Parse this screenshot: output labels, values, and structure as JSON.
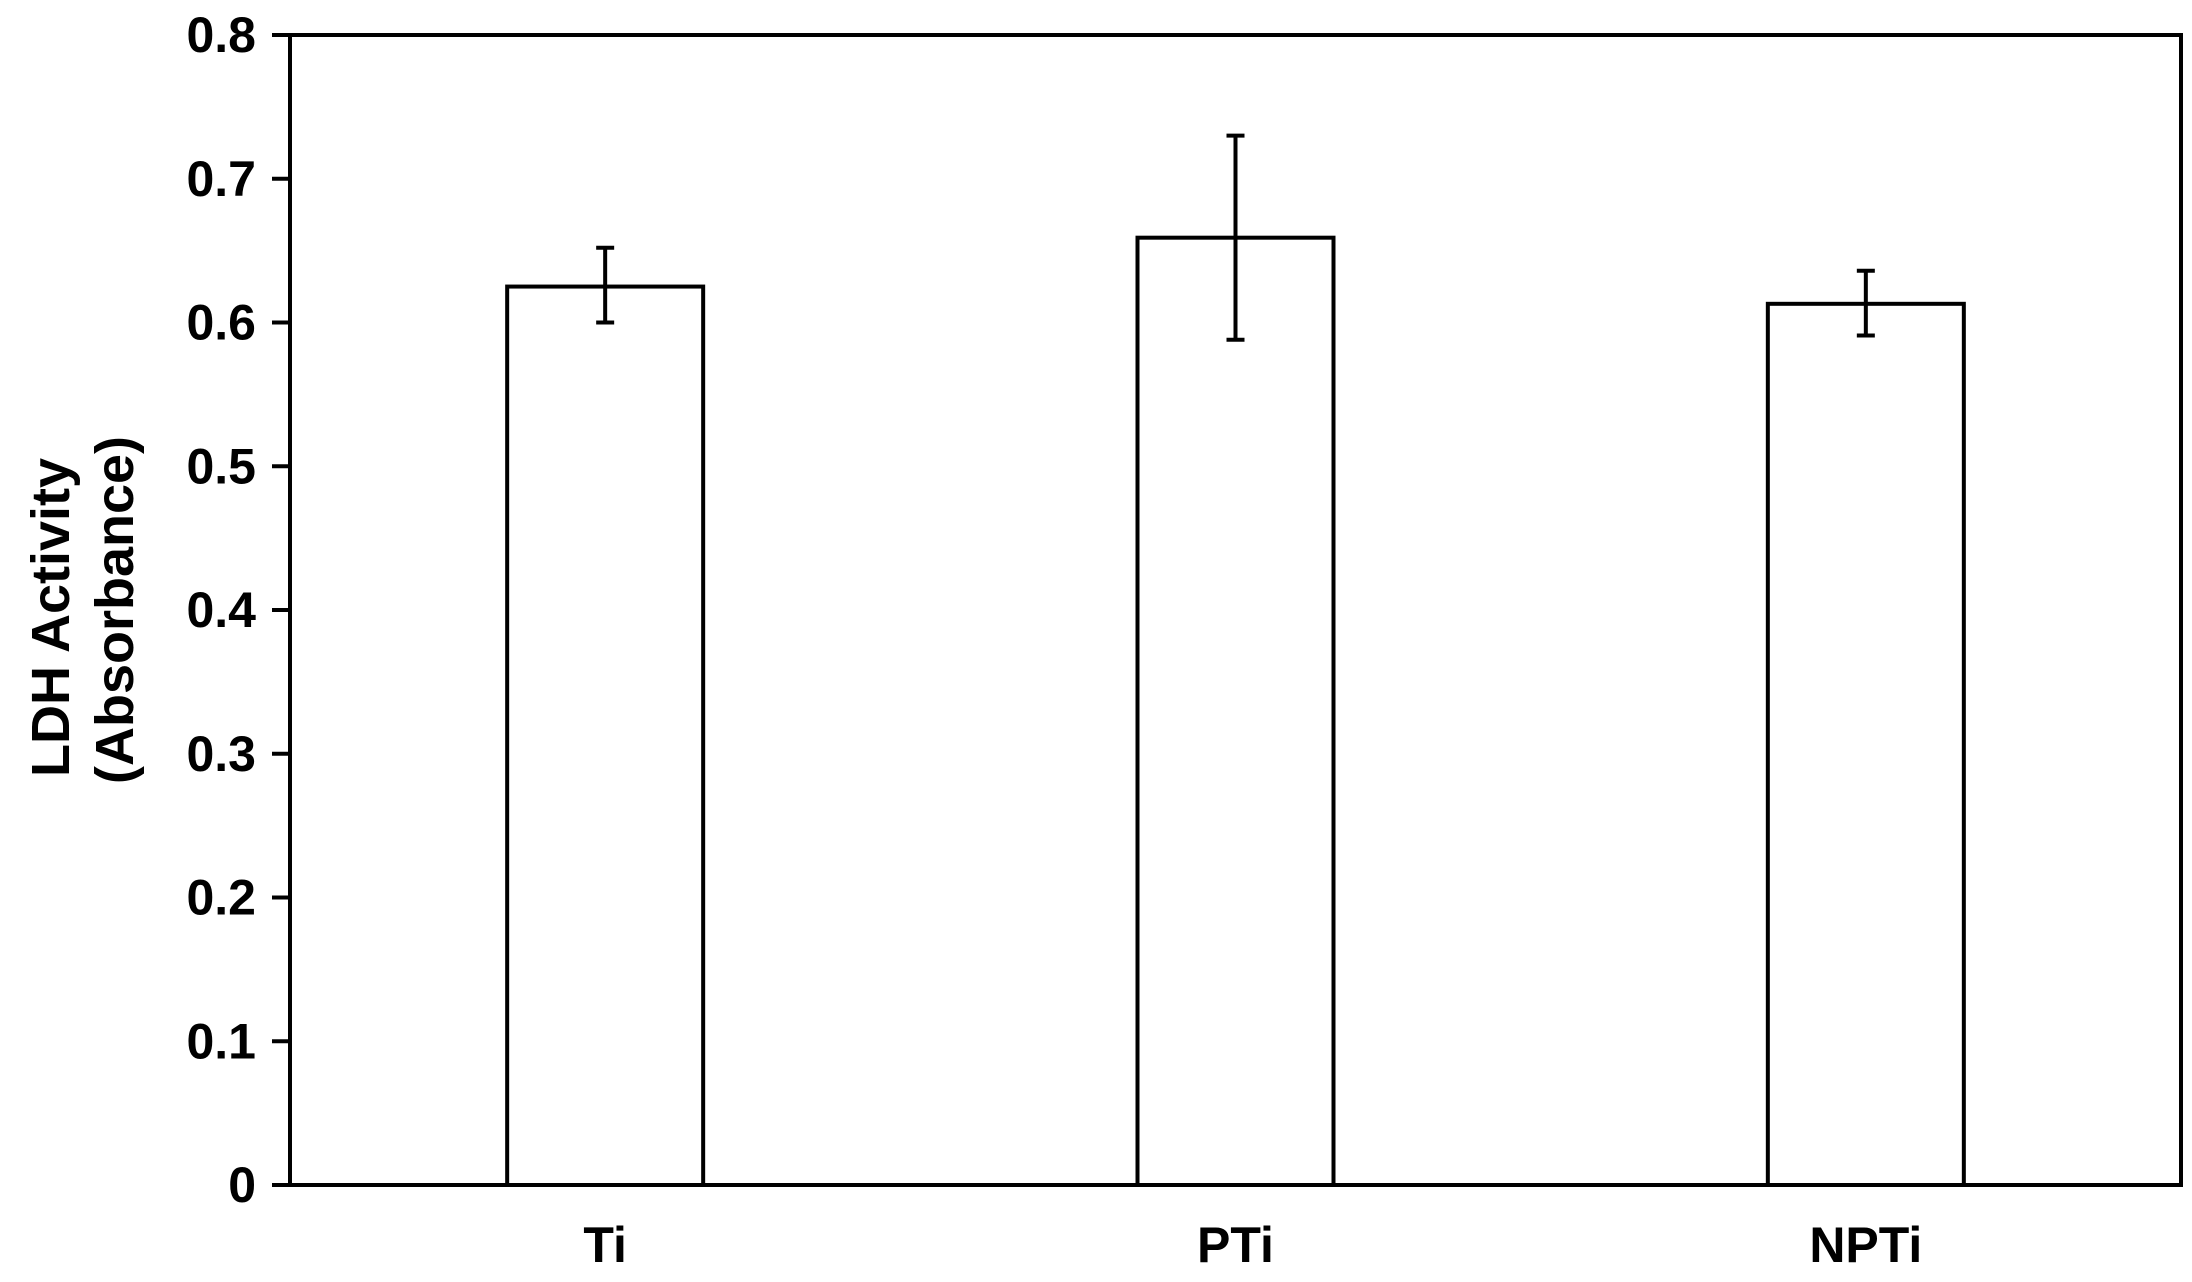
{
  "chart_data": {
    "type": "bar",
    "title": "",
    "xlabel": "",
    "ylabel_lines": [
      "LDH Activity",
      "(Absorbance)"
    ],
    "categories": [
      "Ti",
      "PTi",
      "NPTi"
    ],
    "values": [
      0.625,
      0.659,
      0.613
    ],
    "error_upper": [
      0.652,
      0.73,
      0.636
    ],
    "error_lower": [
      0.6,
      0.588,
      0.591
    ],
    "ylim": [
      0,
      0.8
    ],
    "yticks": [
      0,
      0.1,
      0.2,
      0.3,
      0.4,
      0.5,
      0.6,
      0.7,
      0.8
    ],
    "ytick_labels": [
      "0",
      "0.1",
      "0.2",
      "0.3",
      "0.4",
      "0.5",
      "0.6",
      "0.7",
      "0.8"
    ],
    "grid": false,
    "legend": "none",
    "colors": {
      "bar_fill": "#ffffff",
      "bar_stroke": "#000000",
      "axis": "#000000",
      "error_bar": "#000000"
    }
  }
}
